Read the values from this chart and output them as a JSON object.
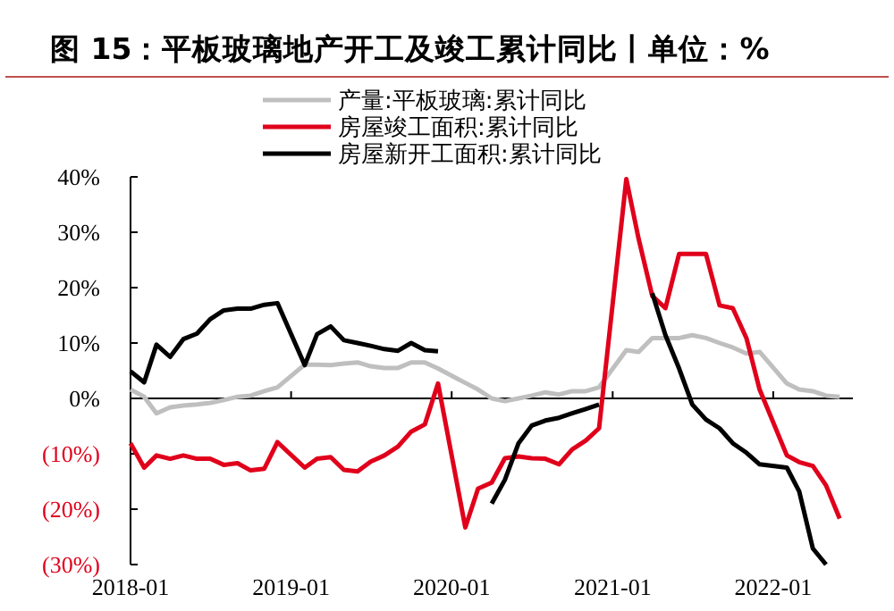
{
  "chart_data": {
    "type": "line",
    "title": "图 15：平板玻璃地产开工及竣工累计同比丨单位：%",
    "x": [
      "2018-01",
      "2018-02",
      "2018-03",
      "2018-04",
      "2018-05",
      "2018-06",
      "2018-07",
      "2018-08",
      "2018-09",
      "2018-10",
      "2018-11",
      "2018-12",
      "2019-02",
      "2019-03",
      "2019-04",
      "2019-05",
      "2019-06",
      "2019-07",
      "2019-08",
      "2019-09",
      "2019-10",
      "2019-11",
      "2019-12",
      "2020-02",
      "2020-03",
      "2020-04",
      "2020-05",
      "2020-06",
      "2020-07",
      "2020-08",
      "2020-09",
      "2020-10",
      "2020-11",
      "2020-12",
      "2021-02",
      "2021-03",
      "2021-04",
      "2021-05",
      "2021-06",
      "2021-07",
      "2021-08",
      "2021-09",
      "2021-10",
      "2021-11",
      "2021-12",
      "2022-02",
      "2022-03",
      "2022-04",
      "2022-05",
      "2022-06"
    ],
    "series": [
      {
        "name": "产量:平板玻璃:累计同比",
        "color": "#bfbfbf",
        "values": [
          1.6,
          0.3,
          -2.7,
          -1.6,
          -1.3,
          -1.1,
          -0.8,
          -0.3,
          0.3,
          0.5,
          1.3,
          2.0,
          6.1,
          6.1,
          6.0,
          6.3,
          6.5,
          5.8,
          5.5,
          5.5,
          6.5,
          6.5,
          5.4,
          2.8,
          1.6,
          0,
          -0.5,
          0,
          0.5,
          1.1,
          0.7,
          1.3,
          1.3,
          2.0,
          8.7,
          8.4,
          10.9,
          10.9,
          10.9,
          11.4,
          10.9,
          10.0,
          9.2,
          8.1,
          8.4,
          2.7,
          1.6,
          1.3,
          0.5,
          0.3
        ]
      },
      {
        "name": "房屋竣工面积:累计同比",
        "color": "#e0001b",
        "values": [
          -8.1,
          -12.5,
          -10.3,
          -10.9,
          -10.3,
          -10.9,
          -10.9,
          -12,
          -11.7,
          -13,
          -12.7,
          -7.9,
          -12.5,
          -10.9,
          -10.6,
          -12.9,
          -13.2,
          -11.4,
          -10.3,
          -8.7,
          -6,
          -4.7,
          2.7,
          -23.3,
          -16.3,
          -15.2,
          -10.8,
          -10.5,
          -10.8,
          -10.9,
          -11.9,
          -9.2,
          -7.6,
          -5.4,
          39.6,
          28.8,
          18.5,
          16.3,
          26.1,
          26.1,
          26.1,
          16.8,
          16.3,
          10.9,
          1.6,
          -10.3,
          -11.5,
          -12.2,
          -15.7,
          -21.7
        ]
      },
      {
        "name": "房屋新开工面积:累计同比",
        "color": "#000000",
        "values": [
          4.9,
          2.9,
          9.7,
          7.5,
          10.7,
          11.7,
          14.3,
          15.9,
          16.2,
          16.2,
          16.9,
          17.2,
          6,
          11.6,
          13,
          10.5,
          10,
          9.5,
          8.9,
          8.6,
          10,
          8.7,
          8.5,
          null,
          null,
          -19,
          -14.7,
          -8.1,
          -4.9,
          -4.0,
          -3.5,
          -2.7,
          -1.9,
          -1.1,
          null,
          null,
          19.0,
          11.4,
          5.4,
          -1.1,
          -3.8,
          -5.4,
          -8.1,
          -9.8,
          -11.9,
          -12.5,
          -16.8,
          -27.1,
          -30,
          null
        ]
      }
    ],
    "xlim": [
      "2018-01",
      "2022-07"
    ],
    "xticks": [
      {
        "value": "2018-01",
        "label": "2018-01"
      },
      {
        "value": "2019-01",
        "label": "2019-01"
      },
      {
        "value": "2020-01",
        "label": "2020-01"
      },
      {
        "value": "2021-01",
        "label": "2021-01"
      },
      {
        "value": "2022-01",
        "label": "2022-01"
      }
    ],
    "ylim": [
      -30,
      40
    ],
    "yticks": [
      {
        "value": -30,
        "label": "(30%)"
      },
      {
        "value": -20,
        "label": "(20%)"
      },
      {
        "value": -10,
        "label": "(10%)"
      },
      {
        "value": 0,
        "label": "0%"
      },
      {
        "value": 10,
        "label": "10%"
      },
      {
        "value": 20,
        "label": "20%"
      },
      {
        "value": 30,
        "label": "30%"
      },
      {
        "value": 40,
        "label": "40%"
      }
    ],
    "legend": "top",
    "marker": "none",
    "line_style": "solid"
  }
}
